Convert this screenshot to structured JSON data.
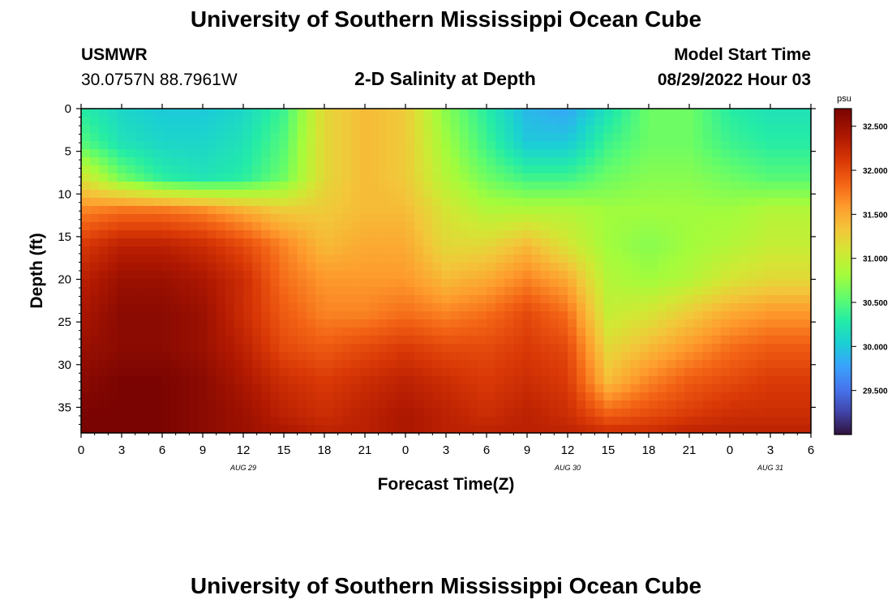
{
  "page": {
    "title": "University of Southern Mississippi Ocean Cube",
    "footer_title": "University of Southern Mississippi Ocean Cube",
    "station": "USMWR",
    "coords": "30.0757N  88.7961W",
    "plot_title": "2-D Salinity at Depth",
    "model_label": "Model Start Time",
    "model_time": "08/29/2022 Hour 03"
  },
  "chart_data": {
    "type": "heatmap",
    "title": "2-D Salinity at Depth",
    "xlabel": "Forecast Time(Z)",
    "ylabel": "Depth (ft)",
    "x_ticks": [
      "0",
      "3",
      "6",
      "9",
      "12",
      "15",
      "18",
      "21",
      "0",
      "3",
      "6",
      "9",
      "12",
      "15",
      "18",
      "21",
      "0",
      "3",
      "6"
    ],
    "y_ticks": [
      "0",
      "5",
      "10",
      "15",
      "20",
      "25",
      "30",
      "35"
    ],
    "ylim": [
      0,
      38
    ],
    "x_range_hours": [
      0,
      54
    ],
    "date_labels": [
      {
        "text": "AUG 29",
        "hour": 12
      },
      {
        "text": "AUG 30",
        "hour": 36
      },
      {
        "text": "AUG 31",
        "hour": 51
      }
    ],
    "colorbar": {
      "unit": "psu",
      "range": [
        29.0,
        32.7
      ],
      "tick_labels": [
        "32.500",
        "32.000",
        "31.500",
        "31.000",
        "30.500",
        "30.000",
        "29.500"
      ],
      "tick_values": [
        32.5,
        32.0,
        31.5,
        31.0,
        30.5,
        30.0,
        29.5
      ]
    },
    "grid_hours": [
      0,
      3,
      6,
      9,
      12,
      15,
      18,
      21,
      24,
      27,
      30,
      33,
      36,
      39,
      42,
      45,
      48,
      51,
      54
    ],
    "grid_depths_ft": [
      0,
      4,
      8,
      12,
      16,
      20,
      24,
      28,
      32,
      36,
      38
    ],
    "salinity_psu": [
      [
        30.3,
        30.1,
        30.0,
        30.0,
        30.1,
        30.4,
        31.2,
        31.4,
        31.3,
        30.7,
        30.3,
        29.9,
        29.8,
        30.2,
        30.6,
        30.6,
        30.3,
        30.2,
        30.2
      ],
      [
        30.5,
        30.2,
        30.1,
        30.1,
        30.2,
        30.5,
        31.2,
        31.4,
        31.3,
        30.8,
        30.4,
        30.0,
        30.0,
        30.4,
        30.6,
        30.6,
        30.4,
        30.3,
        30.3
      ],
      [
        31.1,
        30.6,
        30.3,
        30.2,
        30.3,
        30.6,
        31.2,
        31.4,
        31.3,
        30.9,
        30.6,
        30.4,
        30.4,
        30.6,
        30.7,
        30.7,
        30.6,
        30.5,
        30.5
      ],
      [
        31.7,
        31.8,
        31.8,
        31.7,
        31.5,
        31.3,
        31.3,
        31.4,
        31.4,
        31.1,
        30.9,
        30.9,
        30.9,
        30.8,
        30.8,
        30.8,
        30.8,
        30.9,
        30.9
      ],
      [
        32.1,
        32.3,
        32.3,
        32.2,
        32.0,
        31.7,
        31.4,
        31.5,
        31.5,
        31.2,
        31.2,
        31.4,
        31.1,
        30.8,
        30.7,
        30.8,
        30.9,
        31.0,
        31.0
      ],
      [
        32.3,
        32.5,
        32.5,
        32.4,
        32.2,
        31.8,
        31.6,
        31.6,
        31.6,
        31.4,
        31.5,
        31.7,
        31.5,
        30.9,
        30.8,
        30.9,
        31.1,
        31.2,
        31.2
      ],
      [
        32.4,
        32.6,
        32.6,
        32.5,
        32.2,
        31.9,
        31.7,
        31.7,
        31.8,
        31.7,
        31.8,
        32.0,
        31.8,
        31.0,
        31.1,
        31.3,
        31.5,
        31.6,
        31.6
      ],
      [
        32.5,
        32.6,
        32.6,
        32.5,
        32.3,
        32.0,
        31.9,
        32.0,
        32.1,
        32.0,
        32.0,
        32.1,
        32.0,
        31.2,
        31.4,
        31.6,
        31.8,
        31.9,
        31.9
      ],
      [
        32.6,
        32.7,
        32.7,
        32.6,
        32.4,
        32.2,
        32.1,
        32.2,
        32.3,
        32.2,
        32.1,
        32.2,
        32.1,
        31.4,
        31.7,
        31.9,
        32.0,
        32.1,
        32.1
      ],
      [
        32.7,
        32.7,
        32.7,
        32.6,
        32.5,
        32.3,
        32.2,
        32.3,
        32.4,
        32.3,
        32.2,
        32.3,
        32.2,
        31.9,
        32.0,
        32.1,
        32.2,
        32.2,
        32.2
      ],
      [
        32.7,
        32.7,
        32.7,
        32.6,
        32.5,
        32.4,
        32.3,
        32.3,
        32.4,
        32.3,
        32.3,
        32.3,
        32.3,
        32.2,
        32.2,
        32.3,
        32.3,
        32.3,
        32.3
      ]
    ]
  }
}
